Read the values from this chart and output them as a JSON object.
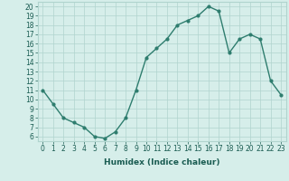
{
  "x": [
    0,
    1,
    2,
    3,
    4,
    5,
    6,
    7,
    8,
    9,
    10,
    11,
    12,
    13,
    14,
    15,
    16,
    17,
    18,
    19,
    20,
    21,
    22,
    23
  ],
  "y": [
    11,
    9.5,
    8,
    7.5,
    7,
    6,
    5.8,
    6.5,
    8,
    11,
    14.5,
    15.5,
    16.5,
    18,
    18.5,
    19,
    20,
    19.5,
    15,
    16.5,
    17,
    16.5,
    12,
    10.5
  ],
  "line_color": "#2e7d6e",
  "marker": "o",
  "marker_size": 2.0,
  "bg_color": "#d6eeea",
  "grid_color": "#b0d4ce",
  "xlabel": "Humidex (Indice chaleur)",
  "xlim": [
    -0.5,
    23.5
  ],
  "ylim": [
    5.5,
    20.5
  ],
  "yticks": [
    6,
    7,
    8,
    9,
    10,
    11,
    12,
    13,
    14,
    15,
    16,
    17,
    18,
    19,
    20
  ],
  "xticks": [
    0,
    1,
    2,
    3,
    4,
    5,
    6,
    7,
    8,
    9,
    10,
    11,
    12,
    13,
    14,
    15,
    16,
    17,
    18,
    19,
    20,
    21,
    22,
    23
  ],
  "xlabel_fontsize": 6.5,
  "tick_fontsize": 5.5,
  "line_width": 1.0,
  "text_color": "#1a5c52"
}
